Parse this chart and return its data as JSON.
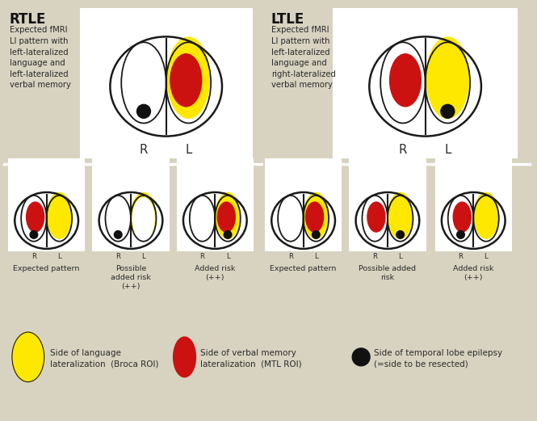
{
  "bg_color": "#d8d3c0",
  "brain_outline_color": "#1a1a1a",
  "yellow_color": "#FFE800",
  "red_color": "#CC1111",
  "black_dot_color": "#111111",
  "text_color": "#2a2a2a",
  "title_color": "#111111",
  "white_color": "#ffffff",
  "rtle_title": "RTLE",
  "ltle_title": "LTLE",
  "rtle_desc": "Expected fMRI\nLI pattern with\nleft-lateralized\nlanguage and\nleft-lateralized\nverbal memory",
  "ltle_desc": "Expected fMRI\nLI pattern with\nleft-lateralized\nlanguage and\nright-lateralized\nverbal memory",
  "bottom_labels_rtle": [
    "Expected pattern",
    "Possible\nadded risk\n(++)",
    "Added risk\n(++)"
  ],
  "bottom_labels_ltle": [
    "Expected pattern",
    "Possible added\nrisk",
    "Added risk\n(++)"
  ],
  "legend_items": [
    {
      "shape": "ellipse",
      "color": "#FFE800",
      "label": "Side of language\nlateralization  (Broca ROI)"
    },
    {
      "shape": "ellipse",
      "color": "#CC1111",
      "label": "Side of verbal memory\nlateralization  (MTL ROI)"
    },
    {
      "shape": "circle",
      "color": "#111111",
      "label": "Side of temporal lobe epilepsy\n(=side to be resected)"
    }
  ]
}
